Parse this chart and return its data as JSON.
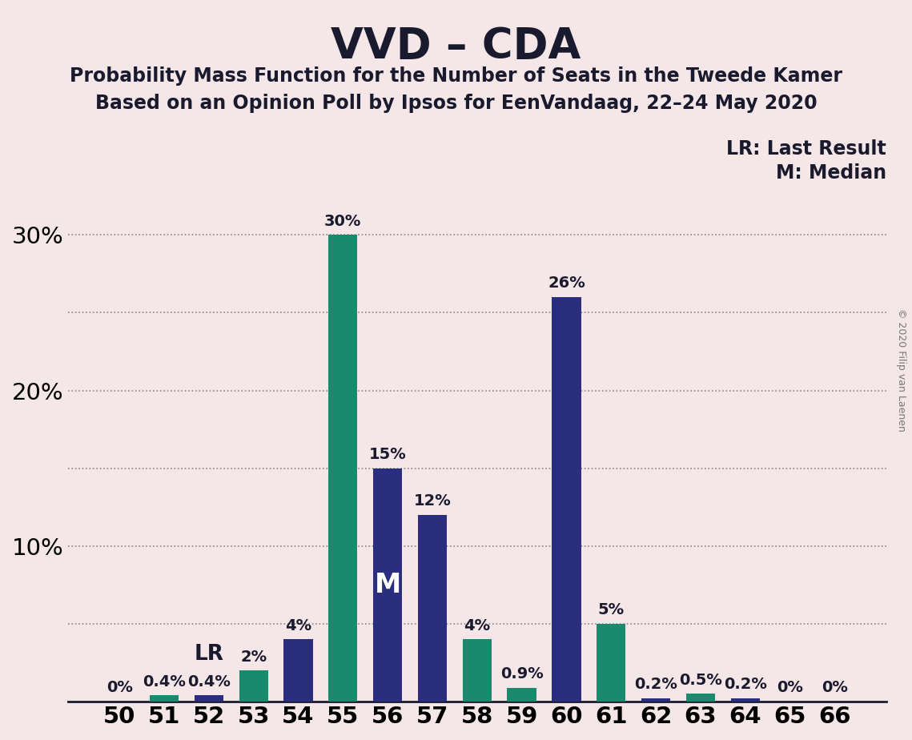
{
  "title": "VVD – CDA",
  "subtitle1": "Probability Mass Function for the Number of Seats in the Tweede Kamer",
  "subtitle2": "Based on an Opinion Poll by Ipsos for EenVandaag, 22–24 May 2020",
  "copyright": "© 2020 Filip van Laenen",
  "seats": [
    50,
    51,
    52,
    53,
    54,
    55,
    56,
    57,
    58,
    59,
    60,
    61,
    62,
    63,
    64,
    65,
    66
  ],
  "values": [
    0.0,
    0.4,
    0.4,
    2.0,
    4.0,
    30.0,
    15.0,
    12.0,
    4.0,
    0.9,
    26.0,
    5.0,
    0.2,
    0.5,
    0.2,
    0.0,
    0.0
  ],
  "colors": [
    "#1a8a6e",
    "#1a8a6e",
    "#2b2d7e",
    "#1a8a6e",
    "#2b2d7e",
    "#1a8a6e",
    "#2b2d7e",
    "#2b2d7e",
    "#1a8a6e",
    "#1a8a6e",
    "#2b2d7e",
    "#1a8a6e",
    "#2b2d7e",
    "#1a8a6e",
    "#2b2d7e",
    "#1a8a6e",
    "#1a8a6e"
  ],
  "labels": [
    "0%",
    "0.4%",
    "0.4%",
    "2%",
    "4%",
    "30%",
    "15%",
    "12%",
    "4%",
    "0.9%",
    "26%",
    "5%",
    "0.2%",
    "0.5%",
    "0.2%",
    "0%",
    "0%"
  ],
  "show_label": [
    true,
    true,
    true,
    true,
    true,
    true,
    true,
    true,
    true,
    true,
    true,
    true,
    true,
    true,
    true,
    true,
    true
  ],
  "vvd_color": "#1a8a6e",
  "cda_color": "#2b2d7e",
  "background_color": "#f5e6e8",
  "lr_seat": 52,
  "median_seat": 56,
  "ylim": [
    0,
    33
  ],
  "yticks": [
    10,
    20,
    30
  ],
  "grid_ticks": [
    5,
    10,
    15,
    20,
    25,
    30
  ],
  "legend_lr": "LR: Last Result",
  "legend_m": "M: Median",
  "bar_width": 0.65,
  "label_fontsize": 14,
  "title_fontsize": 38,
  "subtitle_fontsize": 17,
  "axis_fontsize": 21,
  "annotation_color": "#1a1a2e"
}
